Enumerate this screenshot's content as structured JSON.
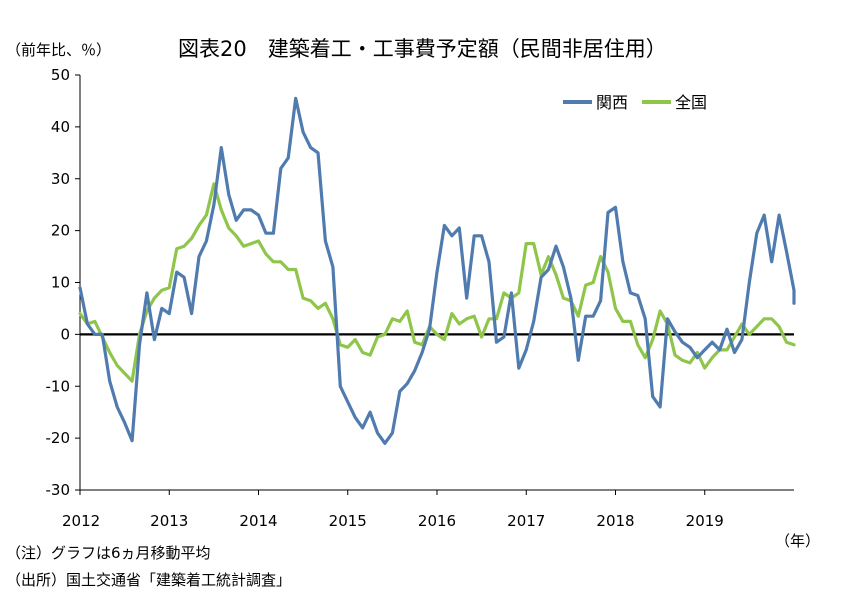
{
  "chart_data": {
    "type": "line",
    "title": "図表20　建築着工・工事費予定額（民間非居住用）",
    "y_unit": "（前年比、％）",
    "x_unit": "（年）",
    "ylim": [
      -30,
      50
    ],
    "y_ticks": [
      -30,
      -20,
      -10,
      0,
      10,
      20,
      30,
      40,
      50
    ],
    "x_range": [
      2012,
      2020
    ],
    "x_ticks": [
      2012,
      2013,
      2014,
      2015,
      2016,
      2017,
      2018,
      2019
    ],
    "grid": false,
    "legend_position": "top-right",
    "series": [
      {
        "name": "関西",
        "color": "#4F7BAE",
        "x_start": 2012.0,
        "x_step": 0.08333,
        "values": [
          9,
          2,
          0,
          0,
          -9,
          -14,
          -17,
          -20.5,
          -2,
          8,
          -1,
          5,
          4,
          12,
          11,
          4,
          15,
          18,
          25,
          36,
          27,
          22,
          24,
          24,
          23,
          19.5,
          19.5,
          32,
          34,
          45.5,
          39,
          36,
          35,
          18,
          13,
          -10,
          -13,
          -16,
          -18,
          -15,
          -19,
          -21,
          -19,
          -11,
          -9.5,
          -7,
          -3.5,
          1,
          12,
          21,
          19,
          20.5,
          7,
          19,
          19,
          14,
          -1.5,
          -0.5,
          8,
          -6.5,
          -3,
          2.5,
          11,
          12.5,
          17,
          13,
          7,
          -5,
          3.5,
          3.5,
          6.5,
          23.5,
          24.5,
          14,
          8,
          7.5,
          3,
          -12,
          -14,
          3,
          0.5,
          -1.5,
          -2.5,
          -4.5,
          -3,
          -1.5,
          -3,
          1,
          -3.5,
          -1,
          10,
          19.5,
          23,
          14,
          23,
          16,
          8.5,
          6
        ]
      },
      {
        "name": "全国",
        "color": "#8FC54A",
        "x_start": 2012.0,
        "x_step": 0.08333,
        "values": [
          4,
          2,
          2.5,
          -0.5,
          -3.5,
          -6,
          -7.5,
          -9,
          0,
          4.5,
          7,
          8.5,
          9,
          16.5,
          17,
          18.5,
          21,
          23,
          29,
          24,
          20.5,
          19,
          17,
          17.5,
          18,
          15.5,
          14,
          14,
          12.5,
          12.5,
          7,
          6.5,
          5,
          6,
          3,
          -2,
          -2.5,
          -1,
          -3.5,
          -4,
          -0.5,
          0,
          3,
          2.5,
          4.5,
          -1.5,
          -2,
          1.5,
          0,
          -1,
          4,
          2,
          3,
          3.5,
          -0.5,
          3,
          3,
          8,
          7,
          8,
          17.5,
          17.5,
          11.5,
          15,
          11.5,
          7,
          6.5,
          3.5,
          9.5,
          10,
          15,
          12,
          5,
          2.5,
          2.5,
          -2,
          -4.5,
          -1,
          4.5,
          2,
          -4,
          -5,
          -5.5,
          -3.5,
          -6.5,
          -4.5,
          -3,
          -3,
          -0.5,
          2,
          0,
          1.5,
          3,
          3,
          1.5,
          -1.5,
          -2
        ]
      }
    ],
    "notes": [
      "（注）グラフは6ヵ月移動平均",
      "（出所）国土交通省「建築着工統計調査」"
    ]
  }
}
